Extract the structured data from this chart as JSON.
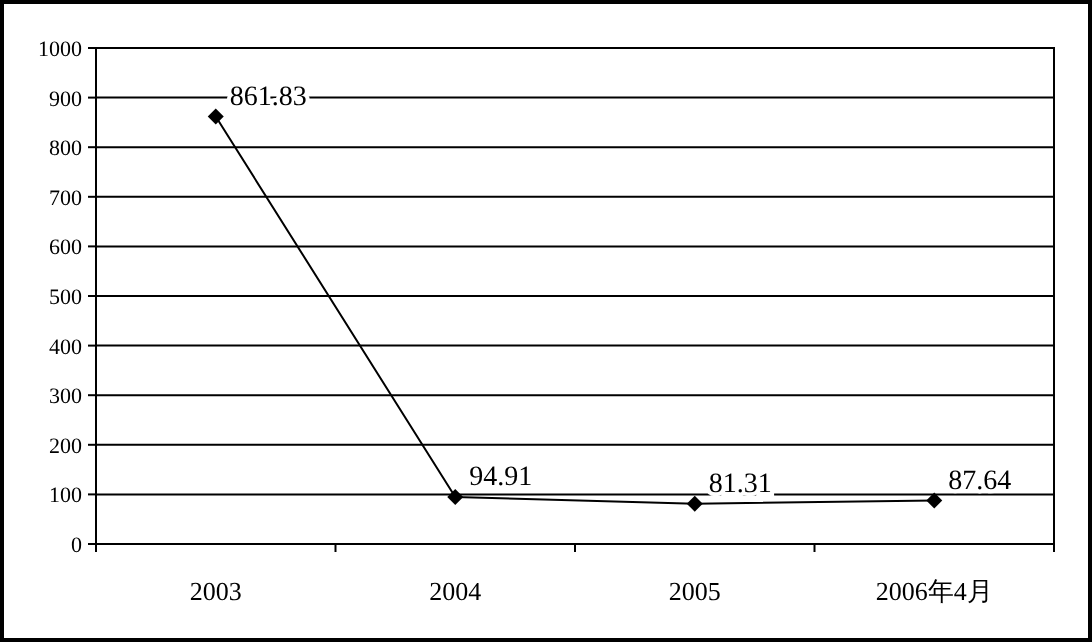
{
  "chart_data": {
    "type": "line",
    "categories": [
      "2003",
      "2004",
      "2005",
      "2006年4月"
    ],
    "series": [
      {
        "color": "#000000",
        "values": [
          861.83,
          94.91,
          81.31,
          87.64
        ]
      }
    ],
    "ylim": [
      0,
      1000
    ],
    "yticks": [
      0,
      100,
      200,
      300,
      400,
      500,
      600,
      700,
      800,
      900,
      1000
    ],
    "grid": "y",
    "marker": "diamond",
    "line_style": "solid",
    "data_labels": true
  }
}
